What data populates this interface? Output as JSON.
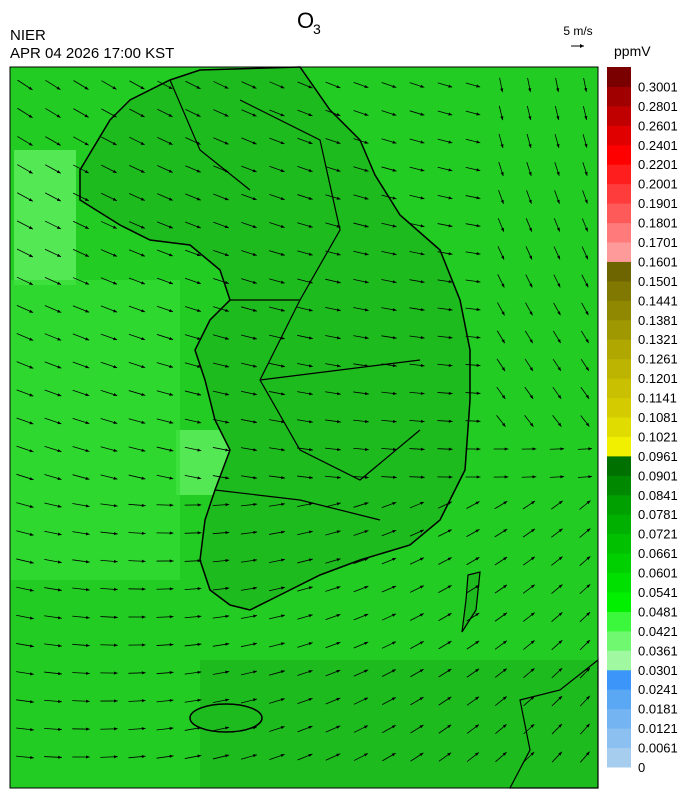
{
  "header": {
    "title": {
      "main": "O",
      "sub": "3"
    },
    "source": "NIER",
    "datetime": "APR 04 2026 17:00 KST"
  },
  "legend": {
    "wind_scale": "5 m/s",
    "unit": "ppmV"
  },
  "colorbar": {
    "labels": [
      0,
      0.0061,
      0.0121,
      0.0181,
      0.0241,
      0.0301,
      0.0361,
      0.0421,
      0.0481,
      0.0541,
      0.0601,
      0.0661,
      0.0721,
      0.0781,
      0.0841,
      0.0901,
      0.0961,
      0.1021,
      0.1081,
      0.1141,
      0.1201,
      0.1261,
      0.1321,
      0.1381,
      0.1441,
      0.1501,
      0.1601,
      0.1701,
      0.1801,
      0.1901,
      0.2001,
      0.2201,
      0.2401,
      0.2601,
      0.2801,
      0.3001
    ],
    "colors": [
      "#a6cdee",
      "#8cc0f0",
      "#74b4f2",
      "#5aa8f4",
      "#3c96fa",
      "#a0f8a0",
      "#70f870",
      "#3cf83c",
      "#00f000",
      "#00e000",
      "#00d000",
      "#00c000",
      "#00b000",
      "#00a000",
      "#008800",
      "#007000",
      "#f0f000",
      "#e0dc00",
      "#d4cc00",
      "#c8c000",
      "#bcb400",
      "#b0a800",
      "#a09800",
      "#908800",
      "#807800",
      "#6e6400",
      "#ff9a9a",
      "#ff7a7a",
      "#ff5a5a",
      "#ff3c3c",
      "#ff1e1e",
      "#ff0000",
      "#e00000",
      "#c00000",
      "#a00000",
      "#7a0000"
    ]
  }
}
